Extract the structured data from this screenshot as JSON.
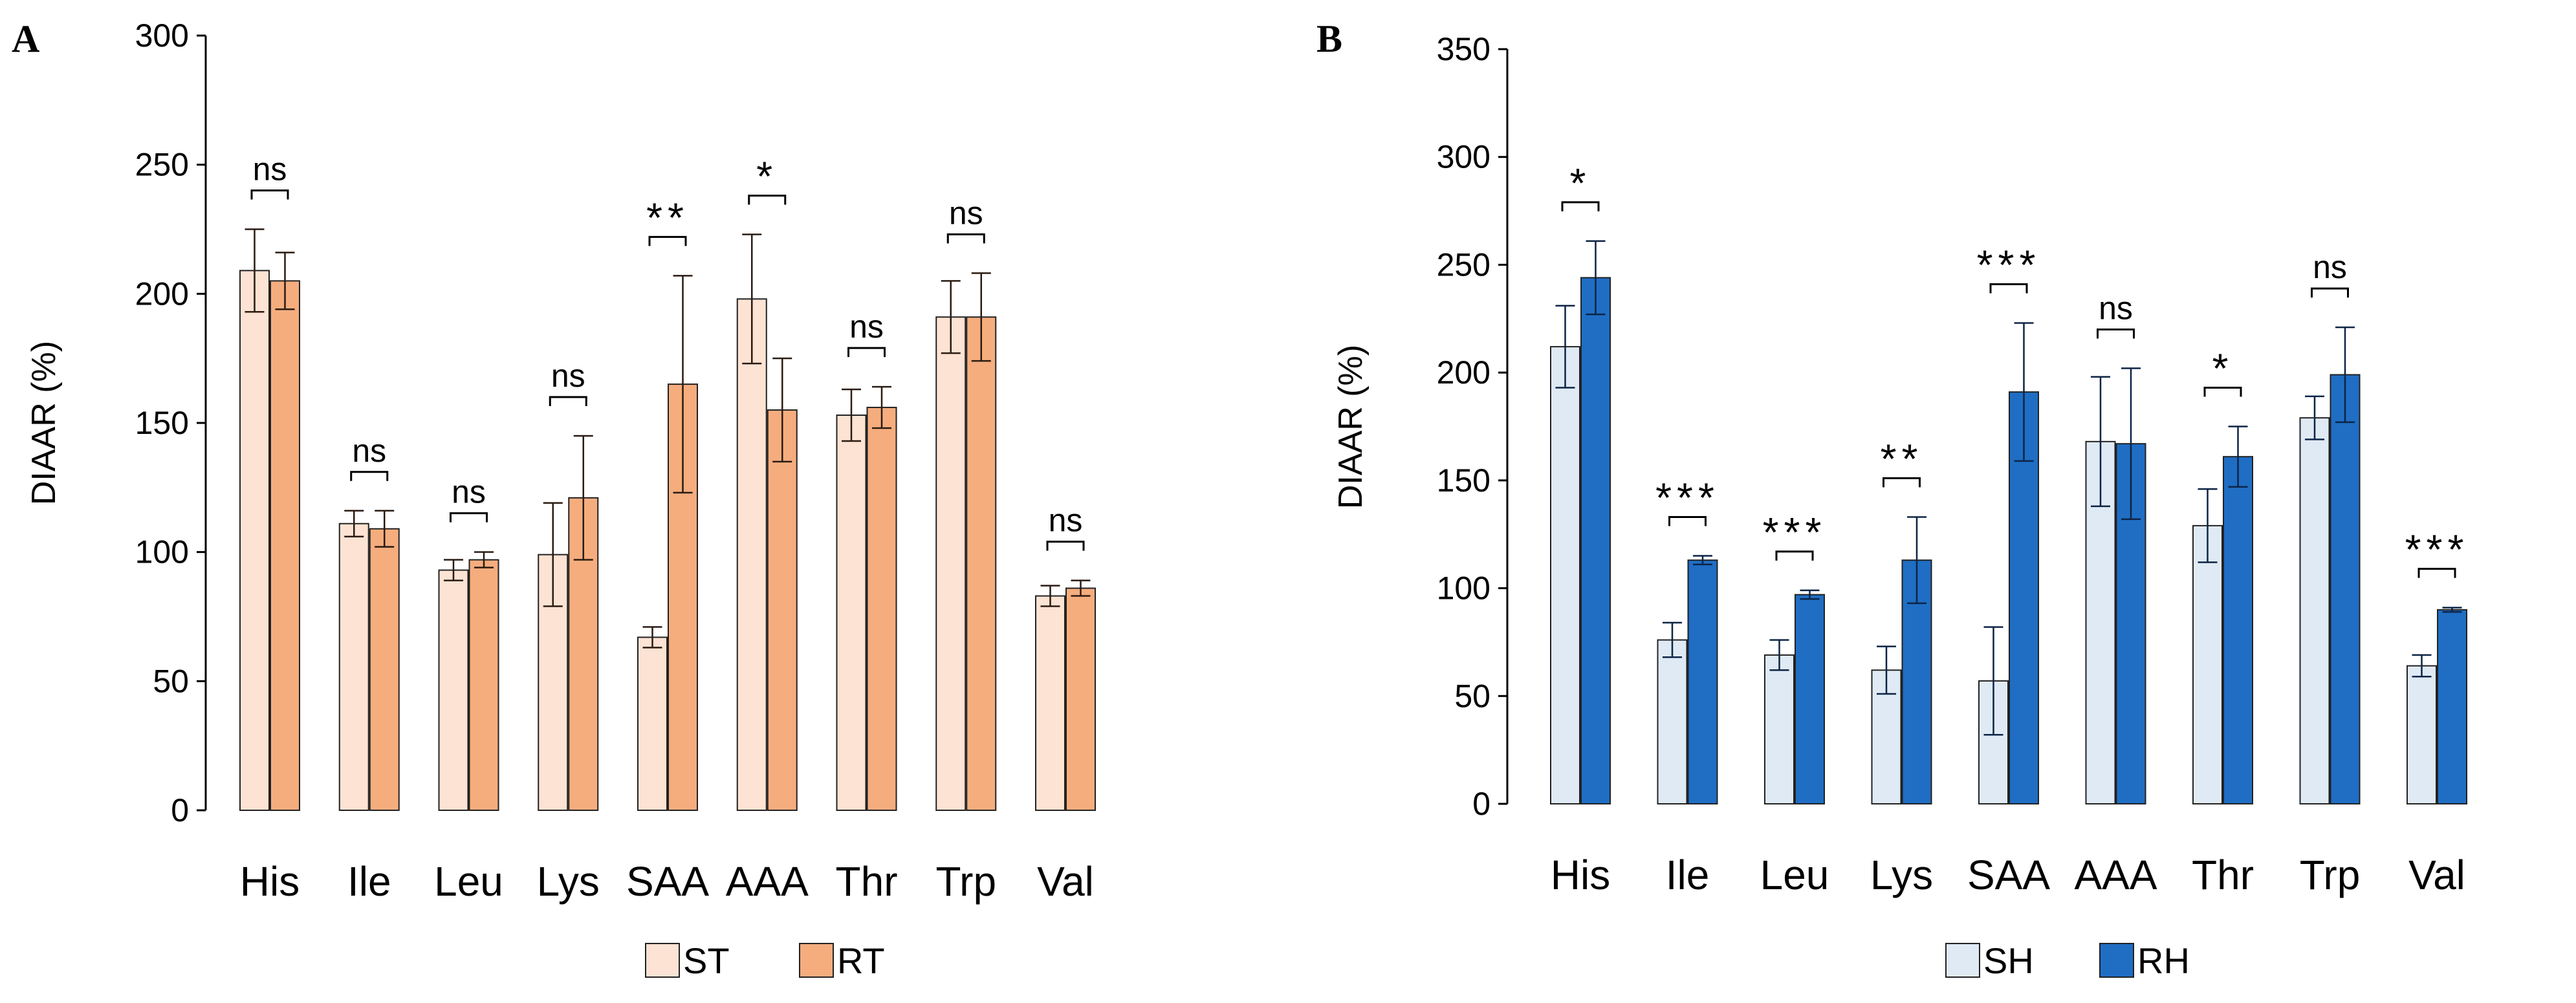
{
  "chart_data": [
    {
      "panel": "A",
      "type": "bar",
      "title": "",
      "xlabel": "",
      "ylabel": "DIAAR (%)",
      "ylim": [
        0,
        300
      ],
      "yticks": [
        0,
        50,
        100,
        150,
        200,
        250,
        300
      ],
      "grid": false,
      "legend_position": "bottom-center",
      "categories": [
        "His",
        "Ile",
        "Leu",
        "Lys",
        "SAA",
        "AAA",
        "Thr",
        "Trp",
        "Val"
      ],
      "series": [
        {
          "name": "ST",
          "color": "#fde3d3",
          "values": [
            209,
            111,
            93,
            99,
            67,
            198,
            153,
            191,
            83
          ],
          "error": [
            16,
            5,
            4,
            20,
            4,
            25,
            10,
            14,
            4
          ]
        },
        {
          "name": "RT",
          "color": "#f5ad7e",
          "values": [
            205,
            109,
            97,
            121,
            165,
            155,
            156,
            191,
            86
          ],
          "error": [
            11,
            7,
            3,
            24,
            42,
            20,
            8,
            17,
            3
          ]
        }
      ],
      "significance": [
        "ns",
        "ns",
        "ns",
        "ns",
        "**",
        "*",
        "ns",
        "ns",
        "ns"
      ]
    },
    {
      "panel": "B",
      "type": "bar",
      "title": "",
      "xlabel": "",
      "ylabel": "DIAAR (%)",
      "ylim": [
        0,
        350
      ],
      "yticks": [
        0,
        50,
        100,
        150,
        200,
        250,
        300,
        350
      ],
      "grid": false,
      "legend_position": "bottom-center",
      "categories": [
        "His",
        "Ile",
        "Leu",
        "Lys",
        "SAA",
        "AAA",
        "Thr",
        "Trp",
        "Val"
      ],
      "series": [
        {
          "name": "SH",
          "color": "#dfeaf5",
          "values": [
            212,
            76,
            69,
            62,
            57,
            168,
            129,
            179,
            64
          ],
          "error": [
            19,
            8,
            7,
            11,
            25,
            30,
            17,
            10,
            5
          ]
        },
        {
          "name": "RH",
          "color": "#1f6ec4",
          "values": [
            244,
            113,
            97,
            113,
            191,
            167,
            161,
            199,
            90
          ],
          "error": [
            17,
            2,
            2,
            20,
            32,
            35,
            14,
            22,
            1
          ]
        }
      ],
      "significance": [
        "*",
        "***",
        "***",
        "**",
        "***",
        "ns",
        "*",
        "ns",
        "***"
      ]
    }
  ]
}
